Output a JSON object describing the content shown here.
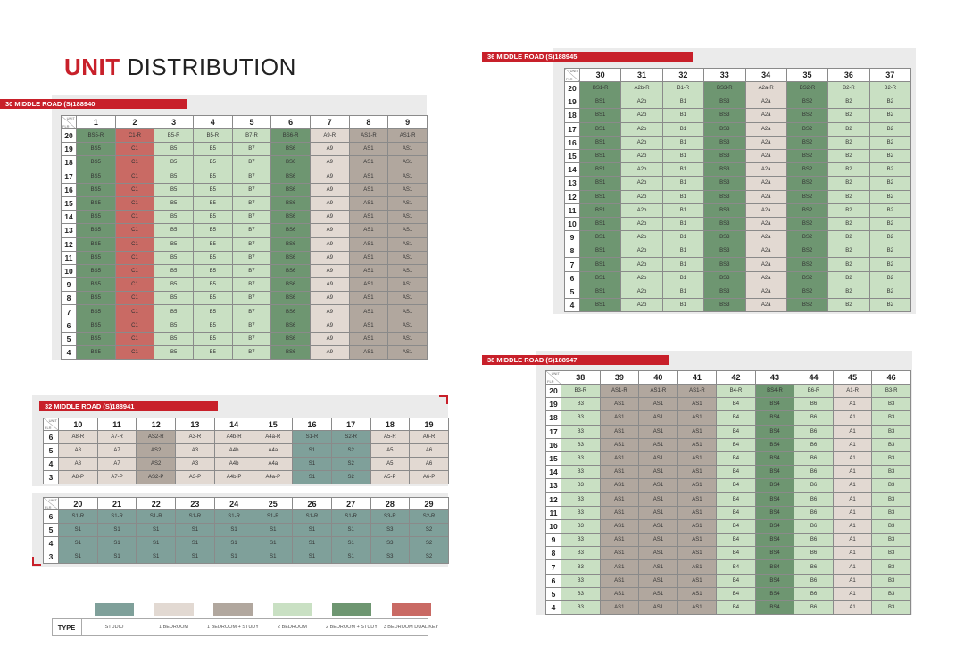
{
  "title_bold": "UNIT",
  "title_rest": " DISTRIBUTION",
  "corner": {
    "unit": "UNIT",
    "flr": "FLR"
  },
  "blocks": [
    {
      "id": "b30",
      "label": "30 MIDDLE ROAD (S)188940",
      "units": [
        "1",
        "2",
        "3",
        "4",
        "5",
        "6",
        "7",
        "8",
        "9"
      ],
      "rows": [
        {
          "floor": "20",
          "cells": [
            "BS5-R",
            "C1-R",
            "B5-R",
            "B5-R",
            "B7-R",
            "BS6-R",
            "A9-R",
            "AS1-R",
            "AS1-R"
          ]
        },
        {
          "floor": "19",
          "cells": [
            "BS5",
            "C1",
            "B5",
            "B5",
            "B7",
            "BS6",
            "A9",
            "AS1",
            "AS1"
          ]
        },
        {
          "floor": "18",
          "cells": [
            "BS5",
            "C1",
            "B5",
            "B5",
            "B7",
            "BS6",
            "A9",
            "AS1",
            "AS1"
          ]
        },
        {
          "floor": "17",
          "cells": [
            "BS5",
            "C1",
            "B5",
            "B5",
            "B7",
            "BS6",
            "A9",
            "AS1",
            "AS1"
          ]
        },
        {
          "floor": "16",
          "cells": [
            "BS5",
            "C1",
            "B5",
            "B5",
            "B7",
            "BS6",
            "A9",
            "AS1",
            "AS1"
          ]
        },
        {
          "floor": "15",
          "cells": [
            "BS5",
            "C1",
            "B5",
            "B5",
            "B7",
            "BS6",
            "A9",
            "AS1",
            "AS1"
          ]
        },
        {
          "floor": "14",
          "cells": [
            "BS5",
            "C1",
            "B5",
            "B5",
            "B7",
            "BS6",
            "A9",
            "AS1",
            "AS1"
          ]
        },
        {
          "floor": "13",
          "cells": [
            "BS5",
            "C1",
            "B5",
            "B5",
            "B7",
            "BS6",
            "A9",
            "AS1",
            "AS1"
          ]
        },
        {
          "floor": "12",
          "cells": [
            "BS5",
            "C1",
            "B5",
            "B5",
            "B7",
            "BS6",
            "A9",
            "AS1",
            "AS1"
          ]
        },
        {
          "floor": "11",
          "cells": [
            "BS5",
            "C1",
            "B5",
            "B5",
            "B7",
            "BS6",
            "A9",
            "AS1",
            "AS1"
          ]
        },
        {
          "floor": "10",
          "cells": [
            "BS5",
            "C1",
            "B5",
            "B5",
            "B7",
            "BS6",
            "A9",
            "AS1",
            "AS1"
          ]
        },
        {
          "floor": "9",
          "cells": [
            "BS5",
            "C1",
            "B5",
            "B5",
            "B7",
            "BS6",
            "A9",
            "AS1",
            "AS1"
          ]
        },
        {
          "floor": "8",
          "cells": [
            "BS5",
            "C1",
            "B5",
            "B5",
            "B7",
            "BS6",
            "A9",
            "AS1",
            "AS1"
          ]
        },
        {
          "floor": "7",
          "cells": [
            "BS5",
            "C1",
            "B5",
            "B5",
            "B7",
            "BS6",
            "A9",
            "AS1",
            "AS1"
          ]
        },
        {
          "floor": "6",
          "cells": [
            "BS5",
            "C1",
            "B5",
            "B5",
            "B7",
            "BS6",
            "A9",
            "AS1",
            "AS1"
          ]
        },
        {
          "floor": "5",
          "cells": [
            "BS5",
            "C1",
            "B5",
            "B5",
            "B7",
            "BS6",
            "A9",
            "AS1",
            "AS1"
          ]
        },
        {
          "floor": "4",
          "cells": [
            "BS5",
            "C1",
            "B5",
            "B5",
            "B7",
            "BS6",
            "A9",
            "AS1",
            "AS1"
          ]
        }
      ],
      "col_types": [
        "2brs",
        "3br",
        "2br",
        "2br",
        "2br",
        "2brs",
        "1br",
        "1brs",
        "1brs"
      ]
    },
    {
      "id": "b36",
      "label": "36 MIDDLE ROAD (S)188945",
      "units": [
        "30",
        "31",
        "32",
        "33",
        "34",
        "35",
        "36",
        "37"
      ],
      "rows": [
        {
          "floor": "20",
          "cells": [
            "BS1-R",
            "A2b-R",
            "B1-R",
            "BS3-R",
            "A2a-R",
            "BS2-R",
            "B2-R",
            "B2-R"
          ]
        },
        {
          "floor": "19",
          "cells": [
            "BS1",
            "A2b",
            "B1",
            "BS3",
            "A2a",
            "BS2",
            "B2",
            "B2"
          ]
        },
        {
          "floor": "18",
          "cells": [
            "BS1",
            "A2b",
            "B1",
            "BS3",
            "A2a",
            "BS2",
            "B2",
            "B2"
          ]
        },
        {
          "floor": "17",
          "cells": [
            "BS1",
            "A2b",
            "B1",
            "BS3",
            "A2a",
            "BS2",
            "B2",
            "B2"
          ]
        },
        {
          "floor": "16",
          "cells": [
            "BS1",
            "A2b",
            "B1",
            "BS3",
            "A2a",
            "BS2",
            "B2",
            "B2"
          ]
        },
        {
          "floor": "15",
          "cells": [
            "BS1",
            "A2b",
            "B1",
            "BS3",
            "A2a",
            "BS2",
            "B2",
            "B2"
          ]
        },
        {
          "floor": "14",
          "cells": [
            "BS1",
            "A2b",
            "B1",
            "BS3",
            "A2a",
            "BS2",
            "B2",
            "B2"
          ]
        },
        {
          "floor": "13",
          "cells": [
            "BS1",
            "A2b",
            "B1",
            "BS3",
            "A2a",
            "BS2",
            "B2",
            "B2"
          ]
        },
        {
          "floor": "12",
          "cells": [
            "BS1",
            "A2b",
            "B1",
            "BS3",
            "A2a",
            "BS2",
            "B2",
            "B2"
          ]
        },
        {
          "floor": "11",
          "cells": [
            "BS1",
            "A2b",
            "B1",
            "BS3",
            "A2a",
            "BS2",
            "B2",
            "B2"
          ]
        },
        {
          "floor": "10",
          "cells": [
            "BS1",
            "A2b",
            "B1",
            "BS3",
            "A2a",
            "BS2",
            "B2",
            "B2"
          ]
        },
        {
          "floor": "9",
          "cells": [
            "BS1",
            "A2b",
            "B1",
            "BS3",
            "A2a",
            "BS2",
            "B2",
            "B2"
          ]
        },
        {
          "floor": "8",
          "cells": [
            "BS1",
            "A2b",
            "B1",
            "BS3",
            "A2a",
            "BS2",
            "B2",
            "B2"
          ]
        },
        {
          "floor": "7",
          "cells": [
            "BS1",
            "A2b",
            "B1",
            "BS3",
            "A2a",
            "BS2",
            "B2",
            "B2"
          ]
        },
        {
          "floor": "6",
          "cells": [
            "BS1",
            "A2b",
            "B1",
            "BS3",
            "A2a",
            "BS2",
            "B2",
            "B2"
          ]
        },
        {
          "floor": "5",
          "cells": [
            "BS1",
            "A2b",
            "B1",
            "BS3",
            "A2a",
            "BS2",
            "B2",
            "B2"
          ]
        },
        {
          "floor": "4",
          "cells": [
            "BS1",
            "A2b",
            "B1",
            "BS3",
            "A2a",
            "BS2",
            "B2",
            "B2"
          ]
        }
      ],
      "col_types": [
        "2brs",
        "2br",
        "2br",
        "2brs",
        "1br",
        "2brs",
        "2br",
        "2br"
      ]
    },
    {
      "id": "b32a",
      "label": "32 MIDDLE ROAD (S)188941",
      "units": [
        "10",
        "11",
        "12",
        "13",
        "14",
        "15",
        "16",
        "17",
        "18",
        "19"
      ],
      "rows": [
        {
          "floor": "6",
          "cells": [
            "A8-R",
            "A7-R",
            "AS2-R",
            "A3-R",
            "A4b-R",
            "A4a-R",
            "S1-R",
            "S2-R",
            "A5-R",
            "A6-R"
          ]
        },
        {
          "floor": "5",
          "cells": [
            "A8",
            "A7",
            "AS2",
            "A3",
            "A4b",
            "A4a",
            "S1",
            "S2",
            "A5",
            "A6"
          ]
        },
        {
          "floor": "4",
          "cells": [
            "A8",
            "A7",
            "AS2",
            "A3",
            "A4b",
            "A4a",
            "S1",
            "S2",
            "A5",
            "A6"
          ]
        },
        {
          "floor": "3",
          "cells": [
            "A8-P",
            "A7-P",
            "AS2-P",
            "A3-P",
            "A4b-P",
            "A4a-P",
            "S1",
            "S2",
            "A5-P",
            "A6-P"
          ]
        }
      ],
      "col_types": [
        "1br",
        "1br",
        "1brs",
        "1br",
        "1br",
        "1br",
        "studio",
        "studio",
        "1br",
        "1br"
      ]
    },
    {
      "id": "b32b",
      "label": "",
      "units": [
        "20",
        "21",
        "22",
        "23",
        "24",
        "25",
        "26",
        "27",
        "28",
        "29"
      ],
      "rows": [
        {
          "floor": "6",
          "cells": [
            "S1-R",
            "S1-R",
            "S1-R",
            "S1-R",
            "S1-R",
            "S1-R",
            "S1-R",
            "S1-R",
            "S3-R",
            "S2-R"
          ]
        },
        {
          "floor": "5",
          "cells": [
            "S1",
            "S1",
            "S1",
            "S1",
            "S1",
            "S1",
            "S1",
            "S1",
            "S3",
            "S2"
          ]
        },
        {
          "floor": "4",
          "cells": [
            "S1",
            "S1",
            "S1",
            "S1",
            "S1",
            "S1",
            "S1",
            "S1",
            "S3",
            "S2"
          ]
        },
        {
          "floor": "3",
          "cells": [
            "S1",
            "S1",
            "S1",
            "S1",
            "S1",
            "S1",
            "S1",
            "S1",
            "S3",
            "S2"
          ]
        }
      ],
      "col_types": [
        "studio",
        "studio",
        "studio",
        "studio",
        "studio",
        "studio",
        "studio",
        "studio",
        "studio",
        "studio"
      ]
    },
    {
      "id": "b38",
      "label": "38 MIDDLE ROAD (S)188947",
      "units": [
        "38",
        "39",
        "40",
        "41",
        "42",
        "43",
        "44",
        "45",
        "46"
      ],
      "rows": [
        {
          "floor": "20",
          "cells": [
            "B3-R",
            "AS1-R",
            "AS1-R",
            "AS1-R",
            "B4-R",
            "BS4-R",
            "B6-R",
            "A1-R",
            "B3-R"
          ]
        },
        {
          "floor": "19",
          "cells": [
            "B3",
            "AS1",
            "AS1",
            "AS1",
            "B4",
            "BS4",
            "B6",
            "A1",
            "B3"
          ]
        },
        {
          "floor": "18",
          "cells": [
            "B3",
            "AS1",
            "AS1",
            "AS1",
            "B4",
            "BS4",
            "B6",
            "A1",
            "B3"
          ]
        },
        {
          "floor": "17",
          "cells": [
            "B3",
            "AS1",
            "AS1",
            "AS1",
            "B4",
            "BS4",
            "B6",
            "A1",
            "B3"
          ]
        },
        {
          "floor": "16",
          "cells": [
            "B3",
            "AS1",
            "AS1",
            "AS1",
            "B4",
            "BS4",
            "B6",
            "A1",
            "B3"
          ]
        },
        {
          "floor": "15",
          "cells": [
            "B3",
            "AS1",
            "AS1",
            "AS1",
            "B4",
            "BS4",
            "B6",
            "A1",
            "B3"
          ]
        },
        {
          "floor": "14",
          "cells": [
            "B3",
            "AS1",
            "AS1",
            "AS1",
            "B4",
            "BS4",
            "B6",
            "A1",
            "B3"
          ]
        },
        {
          "floor": "13",
          "cells": [
            "B3",
            "AS1",
            "AS1",
            "AS1",
            "B4",
            "BS4",
            "B6",
            "A1",
            "B3"
          ]
        },
        {
          "floor": "12",
          "cells": [
            "B3",
            "AS1",
            "AS1",
            "AS1",
            "B4",
            "BS4",
            "B6",
            "A1",
            "B3"
          ]
        },
        {
          "floor": "11",
          "cells": [
            "B3",
            "AS1",
            "AS1",
            "AS1",
            "B4",
            "BS4",
            "B6",
            "A1",
            "B3"
          ]
        },
        {
          "floor": "10",
          "cells": [
            "B3",
            "AS1",
            "AS1",
            "AS1",
            "B4",
            "BS4",
            "B6",
            "A1",
            "B3"
          ]
        },
        {
          "floor": "9",
          "cells": [
            "B3",
            "AS1",
            "AS1",
            "AS1",
            "B4",
            "BS4",
            "B6",
            "A1",
            "B3"
          ]
        },
        {
          "floor": "8",
          "cells": [
            "B3",
            "AS1",
            "AS1",
            "AS1",
            "B4",
            "BS4",
            "B6",
            "A1",
            "B3"
          ]
        },
        {
          "floor": "7",
          "cells": [
            "B3",
            "AS1",
            "AS1",
            "AS1",
            "B4",
            "BS4",
            "B6",
            "A1",
            "B3"
          ]
        },
        {
          "floor": "6",
          "cells": [
            "B3",
            "AS1",
            "AS1",
            "AS1",
            "B4",
            "BS4",
            "B6",
            "A1",
            "B3"
          ]
        },
        {
          "floor": "5",
          "cells": [
            "B3",
            "AS1",
            "AS1",
            "AS1",
            "B4",
            "BS4",
            "B6",
            "A1",
            "B3"
          ]
        },
        {
          "floor": "4",
          "cells": [
            "B3",
            "AS1",
            "AS1",
            "AS1",
            "B4",
            "BS4",
            "B6",
            "A1",
            "B3"
          ]
        }
      ],
      "col_types": [
        "2br",
        "1brs",
        "1brs",
        "1brs",
        "2br",
        "2brs",
        "2br",
        "1br",
        "2br"
      ]
    }
  ],
  "legend": {
    "type_label": "TYPE",
    "items": [
      {
        "key": "studio",
        "label": "STUDIO",
        "color": "#7fa09a"
      },
      {
        "key": "1br",
        "label": "1 BEDROOM",
        "color": "#e2d9d2"
      },
      {
        "key": "1brs",
        "label": "1 BEDROOM + STUDY",
        "color": "#b1a79e"
      },
      {
        "key": "2br",
        "label": "2 BEDROOM",
        "color": "#c9e0c3"
      },
      {
        "key": "2brs",
        "label": "2 BEDROOM + STUDY",
        "color": "#6e9671"
      },
      {
        "key": "3br",
        "label": "3 BEDROOM DUAL KEY",
        "color": "#c96a64"
      }
    ]
  },
  "colors": {
    "accent": "#c8202a"
  }
}
